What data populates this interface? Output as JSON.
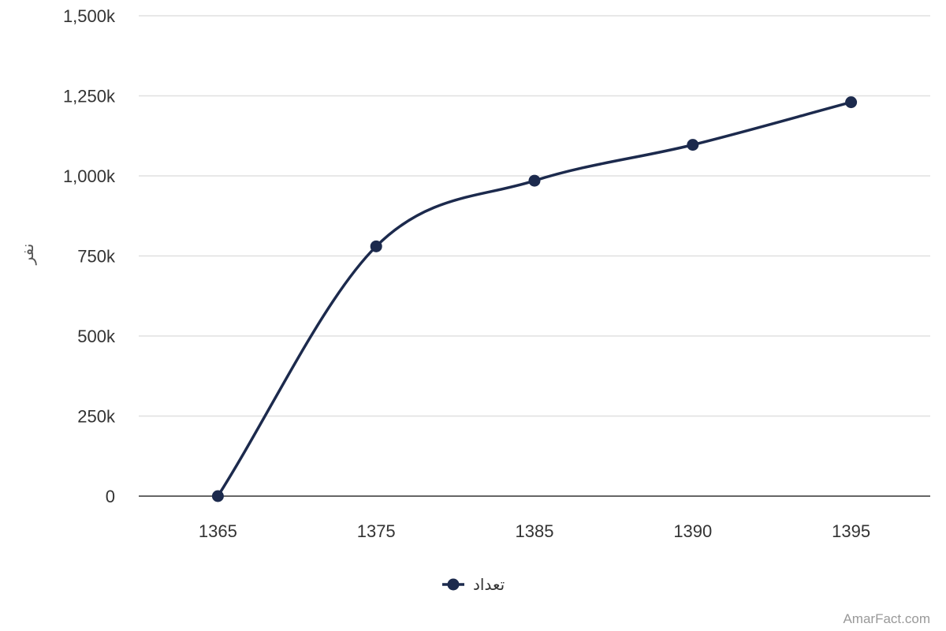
{
  "chart_data": {
    "type": "line",
    "categories": [
      "1365",
      "1375",
      "1385",
      "1390",
      "1395"
    ],
    "series": [
      {
        "name": "تعداد",
        "values": [
          0,
          780000,
          985000,
          1097000,
          1230000
        ]
      }
    ],
    "y_tick_labels": [
      "0",
      "250k",
      "500k",
      "750k",
      "1,000k",
      "1,250k",
      "1,500k"
    ],
    "y_ticks": [
      0,
      250000,
      500000,
      750000,
      1000000,
      1250000,
      1500000
    ],
    "ylim": [
      0,
      1500000
    ],
    "ylabel": "نفر",
    "xlabel": "",
    "grid": true,
    "legend_position": "bottom-center",
    "colors": {
      "series": "#1c2a4d",
      "grid": "#e0e0e0",
      "axis": "#333333"
    }
  },
  "credit": "AmarFact.com"
}
